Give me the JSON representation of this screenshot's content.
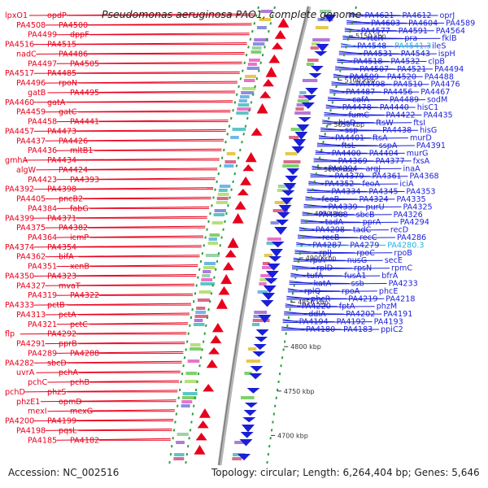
{
  "title": "Pseudomonas aeruginosa PAO1, complete genome",
  "footer": {
    "accession": "Accession: NC_002516",
    "topology": "Topology: circular; Length: 6,264,404 bp; Genes: 5,646"
  },
  "colors": {
    "left_strand": "#e8001c",
    "right_strand": "#1a1fd8",
    "highlight": "#20b4e0",
    "ticks": "#2e9e3a",
    "backbone": "#9a9a9a"
  },
  "kbp_ticks": [
    "5150 kbp",
    "5100 kbp",
    "5050 kbp",
    "5000 kbp",
    "4950 kbp",
    "4900 kbp",
    "4850 kbp",
    "4800 kbp",
    "4750 kbp",
    "4700 kbp"
  ],
  "genes_left": [
    "lpxO1",
    "opdP",
    "PA4508",
    "PA4500",
    "PA4499",
    "dppF",
    "PA4516",
    "PA4515",
    "nadC",
    "PA4486",
    "PA4497",
    "PA4505",
    "PA4517",
    "PA4485",
    "PA4496",
    "rpoN",
    "gatB",
    "PA4495",
    "PA4460",
    "gatA",
    "PA4459",
    "gatC",
    "PA4458",
    "PA4441",
    "PA4457",
    "PA4473",
    "PA4437",
    "PA4426",
    "PA4436",
    "mltB1",
    "gmhA",
    "PA4434",
    "algW",
    "PA4424",
    "PA4423",
    "PA4393",
    "PA4392",
    "PA4398",
    "PA4405",
    "pncB2",
    "PA4384",
    "fabG",
    "PA4399",
    "PA4371",
    "PA4375",
    "PA4382",
    "PA4364",
    "icmP",
    "PA4374",
    "PA4354",
    "PA4362",
    "bifA",
    "PA4351",
    "xenB",
    "PA4350",
    "PA4323",
    "PA4327",
    "mvaT",
    "PA4319",
    "PA4322",
    "PA4333",
    "pctB",
    "PA4313",
    "pctA",
    "PA4321",
    "pctC",
    "flp",
    "PA4292",
    "PA4291",
    "pprB",
    "PA4289",
    "PA4288",
    "PA4282",
    "sbcD",
    "uvrA",
    "pchA",
    "pchC",
    "pchB",
    "pchD",
    "phzS",
    "phzE1",
    "opmD",
    "mexI",
    "mexG",
    "PA4200",
    "PA4199",
    "PA4198",
    "pqsL",
    "PA4185",
    "PA4182"
  ],
  "genes_right": [
    "PA4621",
    "PA4612",
    "oprJ",
    "PA4603",
    "PA4604",
    "PA4589",
    "PA4577",
    "PA4591",
    "PA4564",
    "rtcR",
    "pra",
    "fklB",
    "PA4548",
    "PA4541.3",
    "ileS",
    "PA4531",
    "PA4543",
    "ispH",
    "PA4518",
    "PA4532",
    "clpB",
    "PA4507",
    "PA4521",
    "PA4494",
    "PA4509",
    "PA4520",
    "PA4488",
    "PA4498",
    "PA4510",
    "PA4476",
    "PA4487",
    "PA4456",
    "PA4467",
    "cafA",
    "PA4489",
    "sodM",
    "PA4478",
    "PA4440",
    "hisC1",
    "fumC",
    "PA4422",
    "PA4435",
    "hisD",
    "ftsW",
    "ftsI",
    "ssp",
    "PA4438",
    "hisG",
    "PA4401",
    "ftsA",
    "murD",
    "ftsL",
    "sspA",
    "PA4391",
    "PA4400",
    "PA4404",
    "murG",
    "PA4369",
    "PA4377",
    "fxsA",
    "PA4394",
    "argJ",
    "inaA",
    "PA4379",
    "PA4361",
    "PA4368",
    "PA4352",
    "feoA",
    "iciA",
    "PA4334",
    "PA4345",
    "PA4353",
    "feoB",
    "PA4324",
    "PA4335",
    "PA4339",
    "purU",
    "PA4325",
    "PA4308",
    "sbcB",
    "PA4326",
    "tadA",
    "pprA",
    "PA4294",
    "PA4298",
    "tadC",
    "recD",
    "recB",
    "recC",
    "PA4286",
    "PA4287",
    "PA4279",
    "PA4280.3",
    "rplJ",
    "rpoC",
    "rpoB",
    "rplA",
    "nusG",
    "secE",
    "rplD",
    "rpsN",
    "rpmC",
    "tufA",
    "fusA1",
    "bfrA",
    "katA",
    "ssb",
    "PA4233",
    "rplQ",
    "rpoA",
    "phcE",
    "phcR",
    "PA4219",
    "PA4218",
    "PA4220",
    "fptA",
    "phzM",
    "ddlA",
    "PA4202",
    "PA4191",
    "PA4194",
    "PA4192",
    "PA4193",
    "PA4180",
    "PA4183",
    "ppiC2"
  ]
}
